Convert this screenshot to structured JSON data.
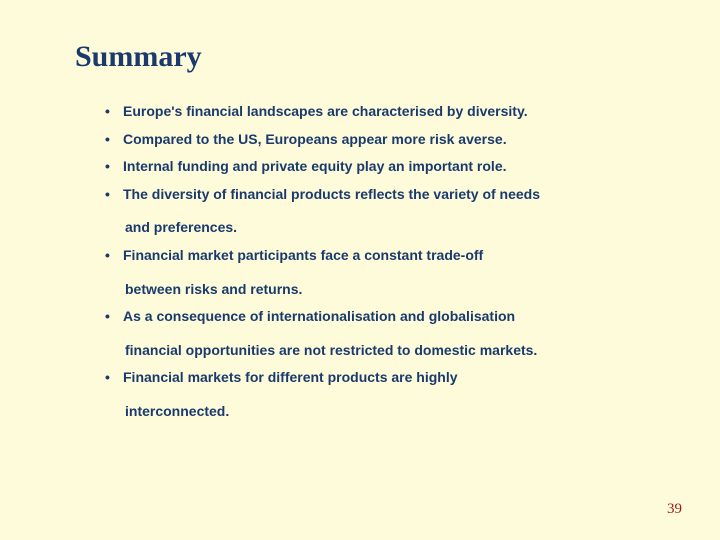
{
  "slide": {
    "background_color": "#fdfbd9",
    "title": "Summary",
    "title_color": "#1a3a6e",
    "title_fontsize": 30,
    "body_color": "#1a3a6e",
    "body_fontsize": 14,
    "line_height": 1.4,
    "bullets": [
      {
        "text": "Europe's financial landscapes are characterised by diversity."
      },
      {
        "text": "Compared to the US, Europeans appear more risk averse."
      },
      {
        "text": "Internal funding and private equity play an important role."
      },
      {
        "text": "The diversity of financial products reflects the variety of needs",
        "cont": "and preferences."
      },
      {
        "text": "Financial market participants face a constant trade-off",
        "cont": "between risks and returns."
      },
      {
        "text": "As a consequence of internationalisation and globalisation",
        "cont": "financial opportunities are not restricted to domestic markets."
      },
      {
        "text": "Financial markets for different products are highly",
        "cont": "interconnected."
      }
    ],
    "page_number": "39",
    "page_number_color": "#9a1b1b",
    "page_number_fontsize": 15
  }
}
